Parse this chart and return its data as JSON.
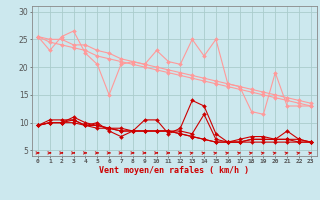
{
  "title": "",
  "xlabel": "Vent moyen/en rafales ( km/h )",
  "background_color": "#cce8ee",
  "grid_color": "#aacccc",
  "x_values": [
    0,
    1,
    2,
    3,
    4,
    5,
    6,
    7,
    8,
    9,
    10,
    11,
    12,
    13,
    14,
    15,
    16,
    17,
    18,
    19,
    20,
    21,
    22,
    23
  ],
  "lines_pink": [
    [
      25.5,
      23.0,
      25.5,
      26.5,
      22.5,
      20.5,
      15.0,
      20.5,
      21.0,
      20.5,
      23.0,
      21.0,
      20.5,
      25.0,
      22.0,
      25.0,
      17.0,
      16.5,
      12.0,
      11.5,
      19.0,
      13.0,
      13.0,
      13.0
    ],
    [
      25.5,
      25.0,
      25.0,
      24.0,
      24.0,
      23.0,
      22.5,
      21.5,
      21.0,
      20.5,
      20.0,
      19.5,
      19.0,
      18.5,
      18.0,
      17.5,
      17.0,
      16.5,
      16.0,
      15.5,
      15.0,
      14.5,
      14.0,
      13.5
    ],
    [
      25.5,
      24.5,
      24.0,
      23.5,
      23.0,
      22.0,
      21.5,
      21.0,
      20.5,
      20.0,
      19.5,
      19.0,
      18.5,
      18.0,
      17.5,
      17.0,
      16.5,
      16.0,
      15.5,
      15.0,
      14.5,
      14.0,
      13.5,
      13.0
    ]
  ],
  "lines_red": [
    [
      9.5,
      10.5,
      10.5,
      10.5,
      9.5,
      10.0,
      8.5,
      7.5,
      8.5,
      10.5,
      10.5,
      8.0,
      9.0,
      14.0,
      13.0,
      8.0,
      6.5,
      7.0,
      7.5,
      7.5,
      7.0,
      8.5,
      7.0,
      6.5
    ],
    [
      9.5,
      10.0,
      10.0,
      11.0,
      10.0,
      9.5,
      9.0,
      9.0,
      8.5,
      8.5,
      8.5,
      8.5,
      8.5,
      8.0,
      11.5,
      7.0,
      6.5,
      6.5,
      7.0,
      7.0,
      7.0,
      7.0,
      7.0,
      6.5
    ],
    [
      9.5,
      10.0,
      10.0,
      10.5,
      9.5,
      9.5,
      9.0,
      8.5,
      8.5,
      8.5,
      8.5,
      8.5,
      8.0,
      7.5,
      7.0,
      6.5,
      6.5,
      6.5,
      7.0,
      7.0,
      7.0,
      7.0,
      6.5,
      6.5
    ],
    [
      9.5,
      10.0,
      10.0,
      10.0,
      9.5,
      9.0,
      9.0,
      8.5,
      8.5,
      8.5,
      8.5,
      8.5,
      8.0,
      7.5,
      7.0,
      6.5,
      6.5,
      6.5,
      6.5,
      6.5,
      6.5,
      6.5,
      6.5,
      6.5
    ]
  ],
  "pink_color": "#ff9999",
  "red_color": "#cc0000",
  "arrow_color": "#cc0000",
  "ylim": [
    4.0,
    31.0
  ],
  "yticks": [
    5,
    10,
    15,
    20,
    25,
    30
  ],
  "xticks": [
    0,
    1,
    2,
    3,
    4,
    5,
    6,
    7,
    8,
    9,
    10,
    11,
    12,
    13,
    14,
    15,
    16,
    17,
    18,
    19,
    20,
    21,
    22,
    23
  ],
  "marker_size": 2.0,
  "line_width": 0.8,
  "arrow_angles": [
    0,
    0,
    0,
    0,
    0,
    0,
    0,
    0,
    0,
    0,
    0,
    0,
    0,
    15,
    15,
    15,
    15,
    15,
    15,
    15,
    15,
    15,
    15,
    15
  ]
}
